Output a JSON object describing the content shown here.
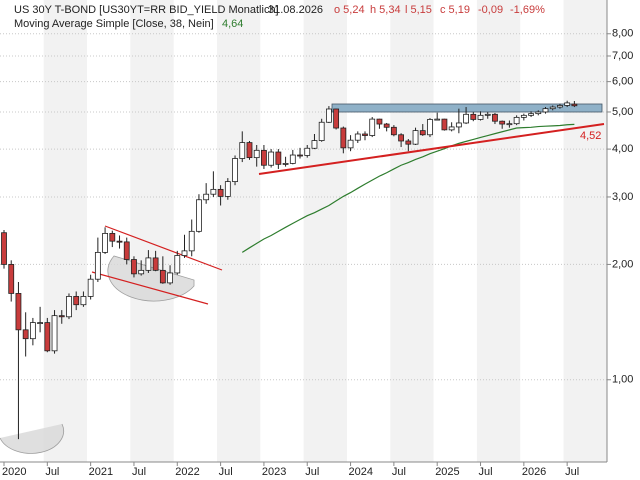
{
  "chart_data": {
    "type": "candlestick",
    "title": "US 30Y T-BOND [US30YT=RR BID_YIELD Monatlich]",
    "date": "31.08.2026",
    "quote": [
      "o 5,24",
      "h 5,34",
      "l 5,15",
      "c 5,19",
      "-0,09",
      "-1,69%"
    ],
    "categories": [
      "2020",
      null,
      null,
      null,
      null,
      null,
      "Jul",
      null,
      null,
      null,
      null,
      null,
      "2021",
      null,
      null,
      null,
      null,
      null,
      "Jul",
      null,
      null,
      null,
      null,
      null,
      "2022",
      null,
      null,
      null,
      null,
      null,
      "Jul",
      null,
      null,
      null,
      null,
      null,
      "2023",
      null,
      null,
      null,
      null,
      null,
      "Jul",
      null,
      null,
      null,
      null,
      null,
      "2024",
      null,
      null,
      null,
      null,
      null,
      "Jul",
      null,
      null,
      null,
      null,
      null,
      "2025",
      null,
      null,
      null,
      null,
      null,
      "Jul",
      null,
      null,
      null,
      null,
      null,
      "2026",
      null,
      null,
      null,
      null,
      null,
      "Jul",
      null
    ],
    "open": [
      2.42,
      2.0,
      1.68,
      1.35,
      1.28,
      1.41,
      1.41,
      1.19,
      1.47,
      1.46,
      1.65,
      1.57,
      1.65,
      1.83,
      2.15,
      2.41,
      2.3,
      2.29,
      2.06,
      1.89,
      1.93,
      2.08,
      1.93,
      1.79,
      1.9,
      2.11,
      2.17,
      2.44,
      2.95,
      3.05,
      3.14,
      3.01,
      3.29,
      3.78,
      4.16,
      3.8,
      3.97,
      3.63,
      3.93,
      3.65,
      3.67,
      3.86,
      3.85,
      4.02,
      4.21,
      4.7,
      5.09,
      4.54,
      4.03,
      4.22,
      4.38,
      4.34,
      4.79,
      4.65,
      4.56,
      4.36,
      4.2,
      4.12,
      4.47,
      4.36,
      4.78,
      4.79,
      4.49,
      4.57,
      4.68,
      4.93,
      4.78,
      4.9,
      4.93,
      4.73,
      4.65,
      4.66,
      4.84,
      4.9,
      4.95,
      5.0,
      5.1,
      5.15,
      5.2,
      5.24
    ],
    "high": [
      2.46,
      2.05,
      1.8,
      1.5,
      1.45,
      1.55,
      1.45,
      1.52,
      1.52,
      1.68,
      1.7,
      1.7,
      1.88,
      2.35,
      2.5,
      2.45,
      2.38,
      2.35,
      2.1,
      2.05,
      2.18,
      2.17,
      2.1,
      1.99,
      2.17,
      2.39,
      2.62,
      3.05,
      3.26,
      3.5,
      3.22,
      3.36,
      3.85,
      4.45,
      4.2,
      4.1,
      4.1,
      4.0,
      4.0,
      3.82,
      3.98,
      4.03,
      4.1,
      4.38,
      4.8,
      5.18,
      5.1,
      4.58,
      4.35,
      4.45,
      4.45,
      4.85,
      4.8,
      4.68,
      4.62,
      4.4,
      4.25,
      4.55,
      4.65,
      4.82,
      4.98,
      4.8,
      4.7,
      5.1,
      5.15,
      5.0,
      5.02,
      5.0,
      4.97,
      4.75,
      4.75,
      4.9,
      4.95,
      5.02,
      5.05,
      5.15,
      5.2,
      5.25,
      5.35,
      5.34
    ],
    "low": [
      1.95,
      1.6,
      0.7,
      1.15,
      1.23,
      1.33,
      1.18,
      1.17,
      1.4,
      1.44,
      1.52,
      1.55,
      1.62,
      1.8,
      2.13,
      2.22,
      2.2,
      2.0,
      1.85,
      1.87,
      1.9,
      1.92,
      1.78,
      1.77,
      1.88,
      2.08,
      2.1,
      2.42,
      2.88,
      3.0,
      2.85,
      2.95,
      3.22,
      3.7,
      3.75,
      3.6,
      3.55,
      3.58,
      3.55,
      3.6,
      3.65,
      3.78,
      3.8,
      4.0,
      4.18,
      4.68,
      4.5,
      3.9,
      3.95,
      4.15,
      4.22,
      4.3,
      4.52,
      4.45,
      4.32,
      4.05,
      3.95,
      4.1,
      4.33,
      4.3,
      4.75,
      4.47,
      4.45,
      4.4,
      4.65,
      4.73,
      4.75,
      4.8,
      4.65,
      4.52,
      4.55,
      4.62,
      4.75,
      4.85,
      4.9,
      4.95,
      5.05,
      5.1,
      5.15,
      5.15
    ],
    "close": [
      2.0,
      1.68,
      1.35,
      1.28,
      1.41,
      1.41,
      1.19,
      1.47,
      1.46,
      1.65,
      1.57,
      1.65,
      1.83,
      2.15,
      2.41,
      2.3,
      2.29,
      2.06,
      1.89,
      1.93,
      2.08,
      1.93,
      1.79,
      1.9,
      2.11,
      2.17,
      2.44,
      2.95,
      3.05,
      3.14,
      3.01,
      3.29,
      3.78,
      4.16,
      3.8,
      3.97,
      3.63,
      3.93,
      3.65,
      3.67,
      3.86,
      3.85,
      4.02,
      4.21,
      4.7,
      5.09,
      4.54,
      4.03,
      4.22,
      4.38,
      4.34,
      4.79,
      4.65,
      4.56,
      4.36,
      4.2,
      4.12,
      4.47,
      4.36,
      4.78,
      4.79,
      4.49,
      4.57,
      4.68,
      4.93,
      4.78,
      4.9,
      4.93,
      4.73,
      4.65,
      4.66,
      4.84,
      4.9,
      4.95,
      5.0,
      5.1,
      5.15,
      5.2,
      5.28,
      5.19
    ],
    "up_color": "#ffffff",
    "down_color": "#c83c3c",
    "series": [
      {
        "name": "Moving Average Simple [Close, 38, Nein]",
        "color": "#2e7d2e",
        "value_label": "4,64",
        "values": [
          null,
          null,
          null,
          null,
          null,
          null,
          null,
          null,
          null,
          null,
          null,
          null,
          null,
          null,
          null,
          null,
          null,
          null,
          null,
          null,
          null,
          null,
          null,
          null,
          null,
          null,
          null,
          null,
          null,
          null,
          null,
          null,
          null,
          2.15,
          2.21,
          2.27,
          2.33,
          2.38,
          2.44,
          2.5,
          2.56,
          2.62,
          2.68,
          2.73,
          2.79,
          2.85,
          2.93,
          3.01,
          3.08,
          3.16,
          3.24,
          3.32,
          3.4,
          3.47,
          3.55,
          3.63,
          3.69,
          3.76,
          3.82,
          3.89,
          3.95,
          4.01,
          4.08,
          4.14,
          4.19,
          4.24,
          4.29,
          4.34,
          4.39,
          4.44,
          4.49,
          4.54,
          4.55,
          4.56,
          4.58,
          4.59,
          4.6,
          4.61,
          4.63,
          4.64
        ]
      }
    ],
    "annotations": [
      {
        "text": "4,52",
        "color": "#d42020"
      }
    ],
    "log_scale": true,
    "ylim": [
      0.61,
      9.8
    ],
    "yticks": [
      {
        "value": 1,
        "label": "1,00"
      },
      {
        "value": 2,
        "label": "2,00"
      },
      {
        "value": 3,
        "label": "3,00"
      },
      {
        "value": 4,
        "label": "4,00"
      },
      {
        "value": 5,
        "label": "5,00"
      },
      {
        "value": 6,
        "label": "6,00"
      },
      {
        "value": 7,
        "label": "7,00"
      },
      {
        "value": 8,
        "label": "8,00"
      }
    ],
    "grid": true
  }
}
